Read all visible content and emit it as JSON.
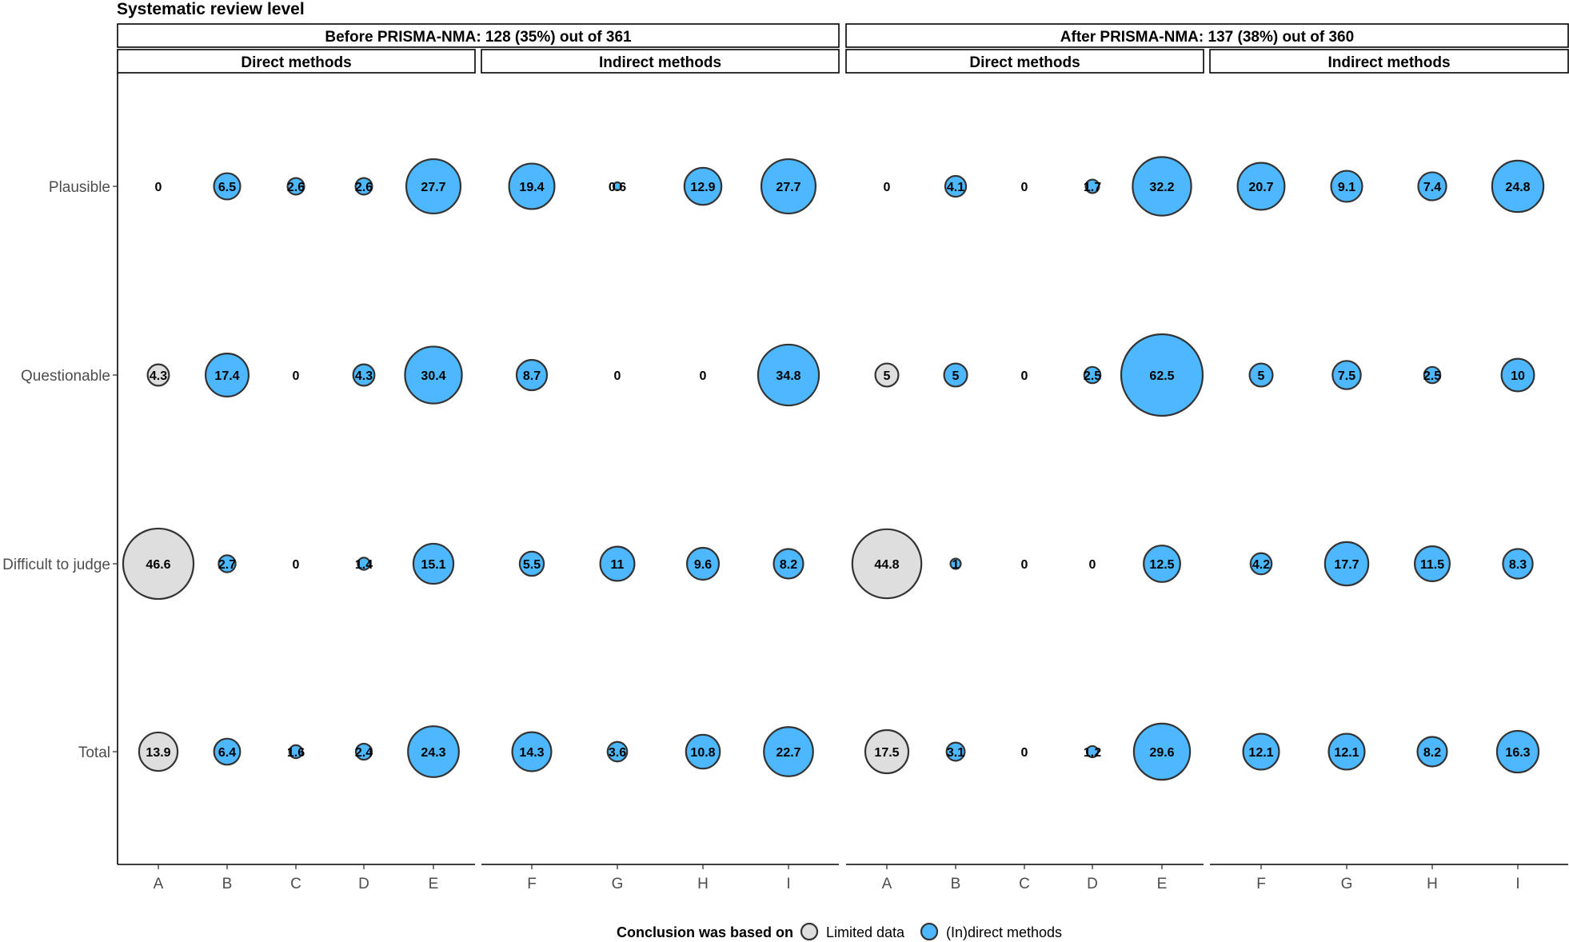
{
  "title": "Systematic review level",
  "colors": {
    "limited_data": "#dedede",
    "indirect_methods": "#4db8ff",
    "outline": "#333333"
  },
  "chart_data": {
    "type": "scatter",
    "subtype": "bubble",
    "title": "Systematic review level",
    "rows": [
      "Plausible",
      "Questionable",
      "Difficult to judge",
      "Total"
    ],
    "legend": {
      "title": "Conclusion was based on",
      "position": "bottom",
      "items": [
        {
          "key": "limited",
          "label": "Limited data",
          "color": "#dedede"
        },
        {
          "key": "methods",
          "label": "(In)direct methods",
          "color": "#4db8ff"
        }
      ]
    },
    "panels": [
      {
        "header": "Before PRISMA-NMA: 128 (35%) out of 361",
        "groups": [
          {
            "label": "Direct methods",
            "categories": [
              "A",
              "B",
              "C",
              "D",
              "E"
            ],
            "fill": [
              "limited",
              "methods",
              "methods",
              "methods",
              "methods"
            ],
            "values": [
              [
                "0",
                "6.5",
                "2.6",
                "2.6",
                "27.7"
              ],
              [
                "4.3",
                "17.4",
                "0",
                "4.3",
                "30.4"
              ],
              [
                "46.6",
                "2.7",
                "0",
                "1.4",
                "15.1"
              ],
              [
                "13.9",
                "6.4",
                "1.6",
                "2.4",
                "24.3"
              ]
            ]
          },
          {
            "label": "Indirect methods",
            "categories": [
              "F",
              "G",
              "H",
              "I"
            ],
            "fill": [
              "methods",
              "methods",
              "methods",
              "methods"
            ],
            "values": [
              [
                "19.4",
                "0.6",
                "12.9",
                "27.7"
              ],
              [
                "8.7",
                "0",
                "0",
                "34.8"
              ],
              [
                "5.5",
                "11",
                "9.6",
                "8.2"
              ],
              [
                "14.3",
                "3.6",
                "10.8",
                "22.7"
              ]
            ]
          }
        ]
      },
      {
        "header": "After PRISMA-NMA: 137 (38%) out of 360",
        "groups": [
          {
            "label": "Direct methods",
            "categories": [
              "A",
              "B",
              "C",
              "D",
              "E"
            ],
            "fill": [
              "limited",
              "methods",
              "methods",
              "methods",
              "methods"
            ],
            "values": [
              [
                "0",
                "4.1",
                "0",
                "1.7",
                "32.2"
              ],
              [
                "5",
                "5",
                "0",
                "2.5",
                "62.5"
              ],
              [
                "44.8",
                "1",
                "0",
                "0",
                "12.5"
              ],
              [
                "17.5",
                "3.1",
                "0",
                "1.2",
                "29.6"
              ]
            ]
          },
          {
            "label": "Indirect methods",
            "categories": [
              "F",
              "G",
              "H",
              "I"
            ],
            "fill": [
              "methods",
              "methods",
              "methods",
              "methods"
            ],
            "values": [
              [
                "20.7",
                "9.1",
                "7.4",
                "24.8"
              ],
              [
                "5",
                "7.5",
                "2.5",
                "10"
              ],
              [
                "4.2",
                "17.7",
                "11.5",
                "8.3"
              ],
              [
                "12.1",
                "12.1",
                "8.2",
                "16.3"
              ]
            ]
          }
        ]
      }
    ]
  }
}
